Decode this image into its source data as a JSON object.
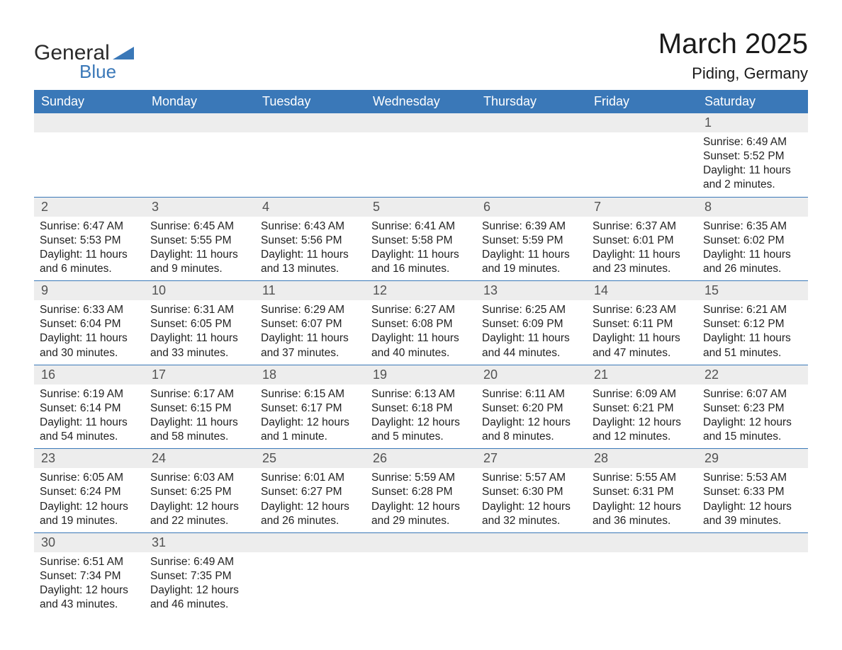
{
  "logo": {
    "text_general": "General",
    "text_blue": "Blue",
    "triangle_color": "#3a78b8"
  },
  "header": {
    "month_title": "March 2025",
    "location": "Piding, Germany"
  },
  "colors": {
    "header_bg": "#3a78b8",
    "header_text": "#ffffff",
    "daynum_bg": "#ededed",
    "daynum_text": "#525252",
    "row_divider": "#3a78b8",
    "body_text": "#222222",
    "page_bg": "#ffffff"
  },
  "typography": {
    "month_title_fontsize": 40,
    "location_fontsize": 22,
    "weekday_fontsize": 18,
    "daynum_fontsize": 18,
    "body_fontsize": 15.5,
    "logo_fontsize": 30
  },
  "weekdays": [
    "Sunday",
    "Monday",
    "Tuesday",
    "Wednesday",
    "Thursday",
    "Friday",
    "Saturday"
  ],
  "weeks": [
    [
      null,
      null,
      null,
      null,
      null,
      null,
      {
        "d": "1",
        "sunrise": "Sunrise: 6:49 AM",
        "sunset": "Sunset: 5:52 PM",
        "daylight": "Daylight: 11 hours and 2 minutes."
      }
    ],
    [
      {
        "d": "2",
        "sunrise": "Sunrise: 6:47 AM",
        "sunset": "Sunset: 5:53 PM",
        "daylight": "Daylight: 11 hours and 6 minutes."
      },
      {
        "d": "3",
        "sunrise": "Sunrise: 6:45 AM",
        "sunset": "Sunset: 5:55 PM",
        "daylight": "Daylight: 11 hours and 9 minutes."
      },
      {
        "d": "4",
        "sunrise": "Sunrise: 6:43 AM",
        "sunset": "Sunset: 5:56 PM",
        "daylight": "Daylight: 11 hours and 13 minutes."
      },
      {
        "d": "5",
        "sunrise": "Sunrise: 6:41 AM",
        "sunset": "Sunset: 5:58 PM",
        "daylight": "Daylight: 11 hours and 16 minutes."
      },
      {
        "d": "6",
        "sunrise": "Sunrise: 6:39 AM",
        "sunset": "Sunset: 5:59 PM",
        "daylight": "Daylight: 11 hours and 19 minutes."
      },
      {
        "d": "7",
        "sunrise": "Sunrise: 6:37 AM",
        "sunset": "Sunset: 6:01 PM",
        "daylight": "Daylight: 11 hours and 23 minutes."
      },
      {
        "d": "8",
        "sunrise": "Sunrise: 6:35 AM",
        "sunset": "Sunset: 6:02 PM",
        "daylight": "Daylight: 11 hours and 26 minutes."
      }
    ],
    [
      {
        "d": "9",
        "sunrise": "Sunrise: 6:33 AM",
        "sunset": "Sunset: 6:04 PM",
        "daylight": "Daylight: 11 hours and 30 minutes."
      },
      {
        "d": "10",
        "sunrise": "Sunrise: 6:31 AM",
        "sunset": "Sunset: 6:05 PM",
        "daylight": "Daylight: 11 hours and 33 minutes."
      },
      {
        "d": "11",
        "sunrise": "Sunrise: 6:29 AM",
        "sunset": "Sunset: 6:07 PM",
        "daylight": "Daylight: 11 hours and 37 minutes."
      },
      {
        "d": "12",
        "sunrise": "Sunrise: 6:27 AM",
        "sunset": "Sunset: 6:08 PM",
        "daylight": "Daylight: 11 hours and 40 minutes."
      },
      {
        "d": "13",
        "sunrise": "Sunrise: 6:25 AM",
        "sunset": "Sunset: 6:09 PM",
        "daylight": "Daylight: 11 hours and 44 minutes."
      },
      {
        "d": "14",
        "sunrise": "Sunrise: 6:23 AM",
        "sunset": "Sunset: 6:11 PM",
        "daylight": "Daylight: 11 hours and 47 minutes."
      },
      {
        "d": "15",
        "sunrise": "Sunrise: 6:21 AM",
        "sunset": "Sunset: 6:12 PM",
        "daylight": "Daylight: 11 hours and 51 minutes."
      }
    ],
    [
      {
        "d": "16",
        "sunrise": "Sunrise: 6:19 AM",
        "sunset": "Sunset: 6:14 PM",
        "daylight": "Daylight: 11 hours and 54 minutes."
      },
      {
        "d": "17",
        "sunrise": "Sunrise: 6:17 AM",
        "sunset": "Sunset: 6:15 PM",
        "daylight": "Daylight: 11 hours and 58 minutes."
      },
      {
        "d": "18",
        "sunrise": "Sunrise: 6:15 AM",
        "sunset": "Sunset: 6:17 PM",
        "daylight": "Daylight: 12 hours and 1 minute."
      },
      {
        "d": "19",
        "sunrise": "Sunrise: 6:13 AM",
        "sunset": "Sunset: 6:18 PM",
        "daylight": "Daylight: 12 hours and 5 minutes."
      },
      {
        "d": "20",
        "sunrise": "Sunrise: 6:11 AM",
        "sunset": "Sunset: 6:20 PM",
        "daylight": "Daylight: 12 hours and 8 minutes."
      },
      {
        "d": "21",
        "sunrise": "Sunrise: 6:09 AM",
        "sunset": "Sunset: 6:21 PM",
        "daylight": "Daylight: 12 hours and 12 minutes."
      },
      {
        "d": "22",
        "sunrise": "Sunrise: 6:07 AM",
        "sunset": "Sunset: 6:23 PM",
        "daylight": "Daylight: 12 hours and 15 minutes."
      }
    ],
    [
      {
        "d": "23",
        "sunrise": "Sunrise: 6:05 AM",
        "sunset": "Sunset: 6:24 PM",
        "daylight": "Daylight: 12 hours and 19 minutes."
      },
      {
        "d": "24",
        "sunrise": "Sunrise: 6:03 AM",
        "sunset": "Sunset: 6:25 PM",
        "daylight": "Daylight: 12 hours and 22 minutes."
      },
      {
        "d": "25",
        "sunrise": "Sunrise: 6:01 AM",
        "sunset": "Sunset: 6:27 PM",
        "daylight": "Daylight: 12 hours and 26 minutes."
      },
      {
        "d": "26",
        "sunrise": "Sunrise: 5:59 AM",
        "sunset": "Sunset: 6:28 PM",
        "daylight": "Daylight: 12 hours and 29 minutes."
      },
      {
        "d": "27",
        "sunrise": "Sunrise: 5:57 AM",
        "sunset": "Sunset: 6:30 PM",
        "daylight": "Daylight: 12 hours and 32 minutes."
      },
      {
        "d": "28",
        "sunrise": "Sunrise: 5:55 AM",
        "sunset": "Sunset: 6:31 PM",
        "daylight": "Daylight: 12 hours and 36 minutes."
      },
      {
        "d": "29",
        "sunrise": "Sunrise: 5:53 AM",
        "sunset": "Sunset: 6:33 PM",
        "daylight": "Daylight: 12 hours and 39 minutes."
      }
    ],
    [
      {
        "d": "30",
        "sunrise": "Sunrise: 6:51 AM",
        "sunset": "Sunset: 7:34 PM",
        "daylight": "Daylight: 12 hours and 43 minutes."
      },
      {
        "d": "31",
        "sunrise": "Sunrise: 6:49 AM",
        "sunset": "Sunset: 7:35 PM",
        "daylight": "Daylight: 12 hours and 46 minutes."
      },
      null,
      null,
      null,
      null,
      null
    ]
  ]
}
